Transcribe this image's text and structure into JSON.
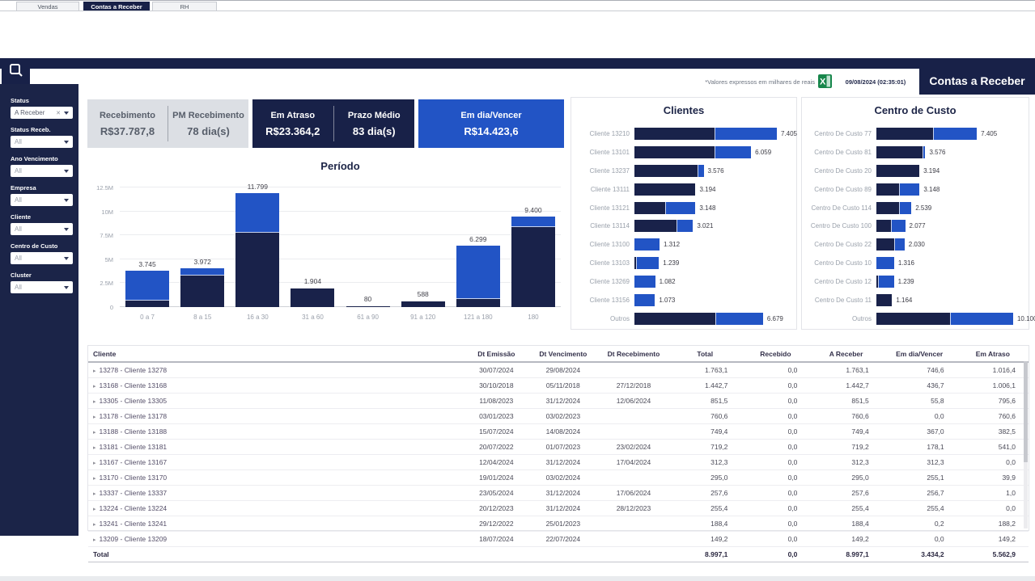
{
  "tabs": {
    "items": [
      {
        "label": "Vendas",
        "active": false
      },
      {
        "label": "Contas a Receber",
        "active": true
      },
      {
        "label": "RH",
        "active": false
      }
    ]
  },
  "header": {
    "note": "*Valores expressos em milhares de reais",
    "timestamp": "09/08/2024 (02:35:01)",
    "title": "Contas a Receber"
  },
  "colors": {
    "navy": "#19224a",
    "blue": "#2254c5",
    "gray_card": "#dcdfe4",
    "excel_green": "#17864b"
  },
  "sidebar": {
    "filters": [
      {
        "label": "Status",
        "value": "A Receber",
        "clearable": true
      },
      {
        "label": "Status Receb.",
        "value": "All",
        "clearable": false
      },
      {
        "label": "Ano Vencimento",
        "value": "All",
        "clearable": false
      },
      {
        "label": "Empresa",
        "value": "All",
        "clearable": false
      },
      {
        "label": "Cliente",
        "value": "All",
        "clearable": false
      },
      {
        "label": "Centro de Custo",
        "value": "All",
        "clearable": false
      },
      {
        "label": "Cluster",
        "value": "All",
        "clearable": false
      }
    ]
  },
  "kpis": {
    "cards": [
      {
        "style": "gray",
        "items": [
          {
            "label": "Recebimento",
            "value": "R$37.787,8"
          },
          {
            "label": "PM Recebimento",
            "value": "78 dia(s)"
          }
        ]
      },
      {
        "style": "navy",
        "items": [
          {
            "label": "Em Atraso",
            "value": "R$23.364,2"
          },
          {
            "label": "Prazo Médio",
            "value": "83 dia(s)"
          }
        ]
      },
      {
        "style": "blue",
        "items": [
          {
            "label": "Em dia/Vencer",
            "value": "R$14.423,6"
          }
        ]
      }
    ]
  },
  "chart_data": [
    {
      "type": "bar",
      "title": "Período",
      "values_unit": "milhares de reais",
      "categories": [
        "0 a 7",
        "8 a 15",
        "16 a 30",
        "31 a 60",
        "61 a 90",
        "91 a 120",
        "121 a 180",
        "180"
      ],
      "series": [
        {
          "name": "Em Atraso",
          "color": "#19224a",
          "values": [
            700,
            3300,
            7800,
            1904,
            80,
            588,
            830,
            8330
          ]
        },
        {
          "name": "Em dia/Vencer",
          "color": "#2254c5",
          "values": [
            3045,
            672,
            3999,
            0,
            0,
            0,
            5469,
            1070
          ]
        }
      ],
      "total_labels": [
        "3.745",
        "3.972",
        "11.799",
        "1.904",
        "80",
        "588",
        "6.299",
        "9.400"
      ],
      "ylim": [
        0,
        12500
      ],
      "ytick_labels": [
        "12.5M",
        "10M",
        "7.5M",
        "5M",
        "2.5M",
        "0"
      ],
      "grid": true,
      "legend": false
    },
    {
      "type": "bar-horizontal",
      "title": "Clientes",
      "values_unit": "milhares de reais",
      "categories": [
        "Cliente 13210",
        "Cliente 13101",
        "Cliente 13237",
        "Cliente 13111",
        "Cliente 13121",
        "Cliente 13114",
        "Cliente 13100",
        "Cliente 13103",
        "Cliente 13269",
        "Cliente 13156",
        "Outros"
      ],
      "series": [
        {
          "name": "Em Atraso",
          "color": "#19224a",
          "values": [
            4200,
            4180,
            3300,
            3194,
            1590,
            2200,
            0,
            100,
            0,
            0,
            4250
          ]
        },
        {
          "name": "Em dia/Vencer",
          "color": "#2254c5",
          "values": [
            3205,
            1879,
            276,
            0,
            1558,
            821,
            1312,
            1139,
            1082,
            1073,
            2429
          ]
        }
      ],
      "total_labels": [
        "7.405",
        "6.059",
        "3.576",
        "3.194",
        "3.148",
        "3.021",
        "1.312",
        "1.239",
        "1.082",
        "1.073",
        "6.679"
      ],
      "xmax": 7405,
      "legend": false
    },
    {
      "type": "bar-horizontal",
      "title": "Centro de Custo",
      "values_unit": "milhares de reais",
      "categories": [
        "Centro De Custo 77",
        "Centro De Custo 81",
        "Centro De Custo 20",
        "Centro De Custo 89",
        "Centro De Custo 114",
        "Centro De Custo 100",
        "Centro De Custo 22",
        "Centro De Custo 10",
        "Centro De Custo 12",
        "Centro De Custo 11",
        "Outros"
      ],
      "series": [
        {
          "name": "Em Atraso",
          "color": "#19224a",
          "values": [
            4220,
            3430,
            3194,
            1660,
            1700,
            1110,
            1330,
            0,
            150,
            1164,
            5460
          ]
        },
        {
          "name": "Em dia/Vencer",
          "color": "#2254c5",
          "values": [
            3185,
            146,
            0,
            1488,
            839,
            967,
            700,
            1316,
            1089,
            0,
            4640
          ]
        }
      ],
      "total_labels": [
        "7.405",
        "3.576",
        "3.194",
        "3.148",
        "2.539",
        "2.077",
        "2.030",
        "1.316",
        "1.239",
        "1.164",
        "10.100"
      ],
      "xmax": 10100,
      "legend": false
    }
  ],
  "table": {
    "columns": [
      "Cliente",
      "Dt Emissão",
      "Dt Vencimento",
      "Dt Recebimento",
      "Total",
      "Recebido",
      "A Receber",
      "Em dia/Vencer",
      "Em Atraso"
    ],
    "rows": [
      {
        "cliente": "13278 - Cliente 13278",
        "dt_emissao": "30/07/2024",
        "dt_vencimento": "29/08/2024",
        "dt_recebimento": "",
        "total": "1.763,1",
        "recebido": "0,0",
        "a_receber": "1.763,1",
        "em_dia_vencer": "746,6",
        "em_atraso": "1.016,4"
      },
      {
        "cliente": "13168 - Cliente 13168",
        "dt_emissao": "30/10/2018",
        "dt_vencimento": "05/11/2018",
        "dt_recebimento": "27/12/2018",
        "total": "1.442,7",
        "recebido": "0,0",
        "a_receber": "1.442,7",
        "em_dia_vencer": "436,7",
        "em_atraso": "1.006,1"
      },
      {
        "cliente": "13305 - Cliente 13305",
        "dt_emissao": "11/08/2023",
        "dt_vencimento": "31/12/2024",
        "dt_recebimento": "12/06/2024",
        "total": "851,5",
        "recebido": "0,0",
        "a_receber": "851,5",
        "em_dia_vencer": "55,8",
        "em_atraso": "795,6"
      },
      {
        "cliente": "13178 - Cliente 13178",
        "dt_emissao": "03/01/2023",
        "dt_vencimento": "03/02/2023",
        "dt_recebimento": "",
        "total": "760,6",
        "recebido": "0,0",
        "a_receber": "760,6",
        "em_dia_vencer": "0,0",
        "em_atraso": "760,6"
      },
      {
        "cliente": "13188 - Cliente 13188",
        "dt_emissao": "15/07/2024",
        "dt_vencimento": "14/08/2024",
        "dt_recebimento": "",
        "total": "749,4",
        "recebido": "0,0",
        "a_receber": "749,4",
        "em_dia_vencer": "367,0",
        "em_atraso": "382,5"
      },
      {
        "cliente": "13181 - Cliente 13181",
        "dt_emissao": "20/07/2022",
        "dt_vencimento": "01/07/2023",
        "dt_recebimento": "23/02/2024",
        "total": "719,2",
        "recebido": "0,0",
        "a_receber": "719,2",
        "em_dia_vencer": "178,1",
        "em_atraso": "541,0"
      },
      {
        "cliente": "13167 - Cliente 13167",
        "dt_emissao": "12/04/2024",
        "dt_vencimento": "31/12/2024",
        "dt_recebimento": "17/04/2024",
        "total": "312,3",
        "recebido": "0,0",
        "a_receber": "312,3",
        "em_dia_vencer": "312,3",
        "em_atraso": "0,0"
      },
      {
        "cliente": "13170 - Cliente 13170",
        "dt_emissao": "19/01/2024",
        "dt_vencimento": "03/02/2024",
        "dt_recebimento": "",
        "total": "295,0",
        "recebido": "0,0",
        "a_receber": "295,0",
        "em_dia_vencer": "255,1",
        "em_atraso": "39,9"
      },
      {
        "cliente": "13337 - Cliente 13337",
        "dt_emissao": "23/05/2024",
        "dt_vencimento": "31/12/2024",
        "dt_recebimento": "17/06/2024",
        "total": "257,6",
        "recebido": "0,0",
        "a_receber": "257,6",
        "em_dia_vencer": "256,7",
        "em_atraso": "1,0"
      },
      {
        "cliente": "13224 - Cliente 13224",
        "dt_emissao": "20/12/2023",
        "dt_vencimento": "31/12/2024",
        "dt_recebimento": "28/12/2023",
        "total": "255,4",
        "recebido": "0,0",
        "a_receber": "255,4",
        "em_dia_vencer": "255,4",
        "em_atraso": "0,0"
      },
      {
        "cliente": "13241 - Cliente 13241",
        "dt_emissao": "29/12/2022",
        "dt_vencimento": "25/01/2023",
        "dt_recebimento": "",
        "total": "188,4",
        "recebido": "0,0",
        "a_receber": "188,4",
        "em_dia_vencer": "0,2",
        "em_atraso": "188,2"
      },
      {
        "cliente": "13209 - Cliente 13209",
        "dt_emissao": "18/07/2024",
        "dt_vencimento": "22/07/2024",
        "dt_recebimento": "",
        "total": "149,2",
        "recebido": "0,0",
        "a_receber": "149,2",
        "em_dia_vencer": "0,0",
        "em_atraso": "149,2"
      }
    ],
    "total_row": {
      "label": "Total",
      "dt_emissao": "",
      "dt_vencimento": "",
      "dt_recebimento": "",
      "total": "8.997,1",
      "recebido": "0,0",
      "a_receber": "8.997,1",
      "em_dia_vencer": "3.434,2",
      "em_atraso": "5.562,9"
    }
  }
}
